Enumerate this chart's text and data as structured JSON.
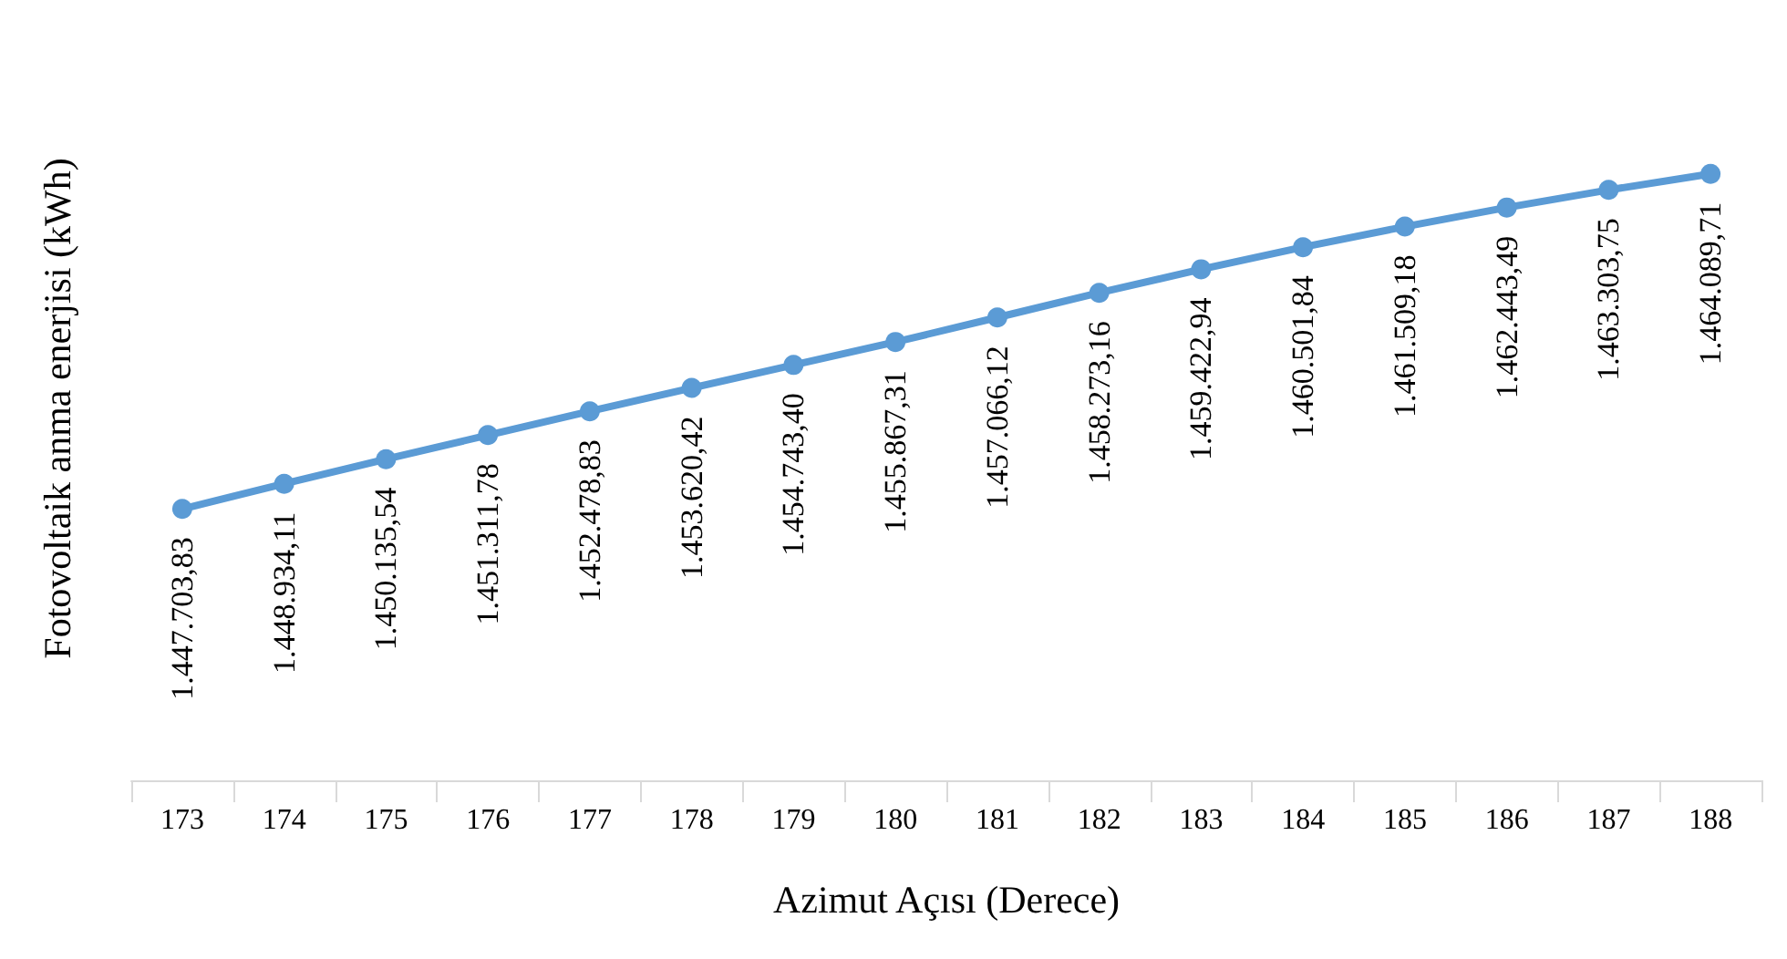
{
  "chart_data": {
    "type": "line",
    "xlabel": "Azimut Açısı (Derece)",
    "ylabel": "Fotovoltaik anma enerjisi (kWh)",
    "categories": [
      "173",
      "174",
      "175",
      "176",
      "177",
      "178",
      "179",
      "180",
      "181",
      "182",
      "183",
      "184",
      "185",
      "186",
      "187",
      "188"
    ],
    "series": [
      {
        "color": "#5b9bd5",
        "values": [
          1447703.83,
          1448934.11,
          1450135.54,
          1451311.78,
          1452478.83,
          1453620.42,
          1454743.4,
          1455867.31,
          1457066.12,
          1458273.16,
          1459422.94,
          1460501.84,
          1461509.18,
          1462443.49,
          1463303.75,
          1464089.71
        ],
        "value_labels": [
          "1.447.703,83",
          "1.448.934,11",
          "1.450.135,54",
          "1.451.311,78",
          "1.452.478,83",
          "1.453.620,42",
          "1.454.743,40",
          "1.455.867,31",
          "1.457.066,12",
          "1.458.273,16",
          "1.459.422,94",
          "1.460.501,84",
          "1.461.509,18",
          "1.462.443,49",
          "1.463.303,75",
          "1.464.089,71"
        ]
      }
    ],
    "grid": false,
    "marker": "circle",
    "line_style": "solid"
  }
}
